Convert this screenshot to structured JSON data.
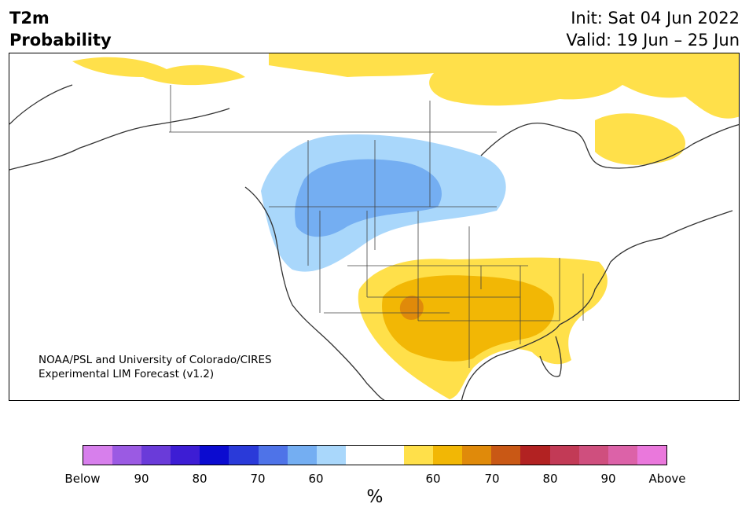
{
  "header": {
    "title_line1": "T2m",
    "title_line2": "Probability",
    "init": "Init: Sat 04 Jun 2022",
    "valid": "Valid: 19 Jun – 25 Jun"
  },
  "map": {
    "credit_line1": "NOAA/PSL and University of Colorado/CIRES",
    "credit_line2": "Experimental LIM Forecast (v1.2)"
  },
  "colorbar": {
    "colors": [
      "#d77fec",
      "#9b5ae3",
      "#6a3bd9",
      "#3d1dd4",
      "#0b0bd0",
      "#2a3ad9",
      "#4e73e8",
      "#74aef2",
      "#a9d7fb",
      "#ffffff",
      "#ffffff",
      "#ffe04a",
      "#f2b705",
      "#e08a0a",
      "#c95815",
      "#b22222",
      "#c23a56",
      "#cf4f7e",
      "#dc62a8",
      "#ea78dc"
    ],
    "tick_labels": [
      "Below",
      "90",
      "80",
      "70",
      "60",
      "60",
      "70",
      "80",
      "90",
      "Above"
    ],
    "unit_label": "%"
  }
}
